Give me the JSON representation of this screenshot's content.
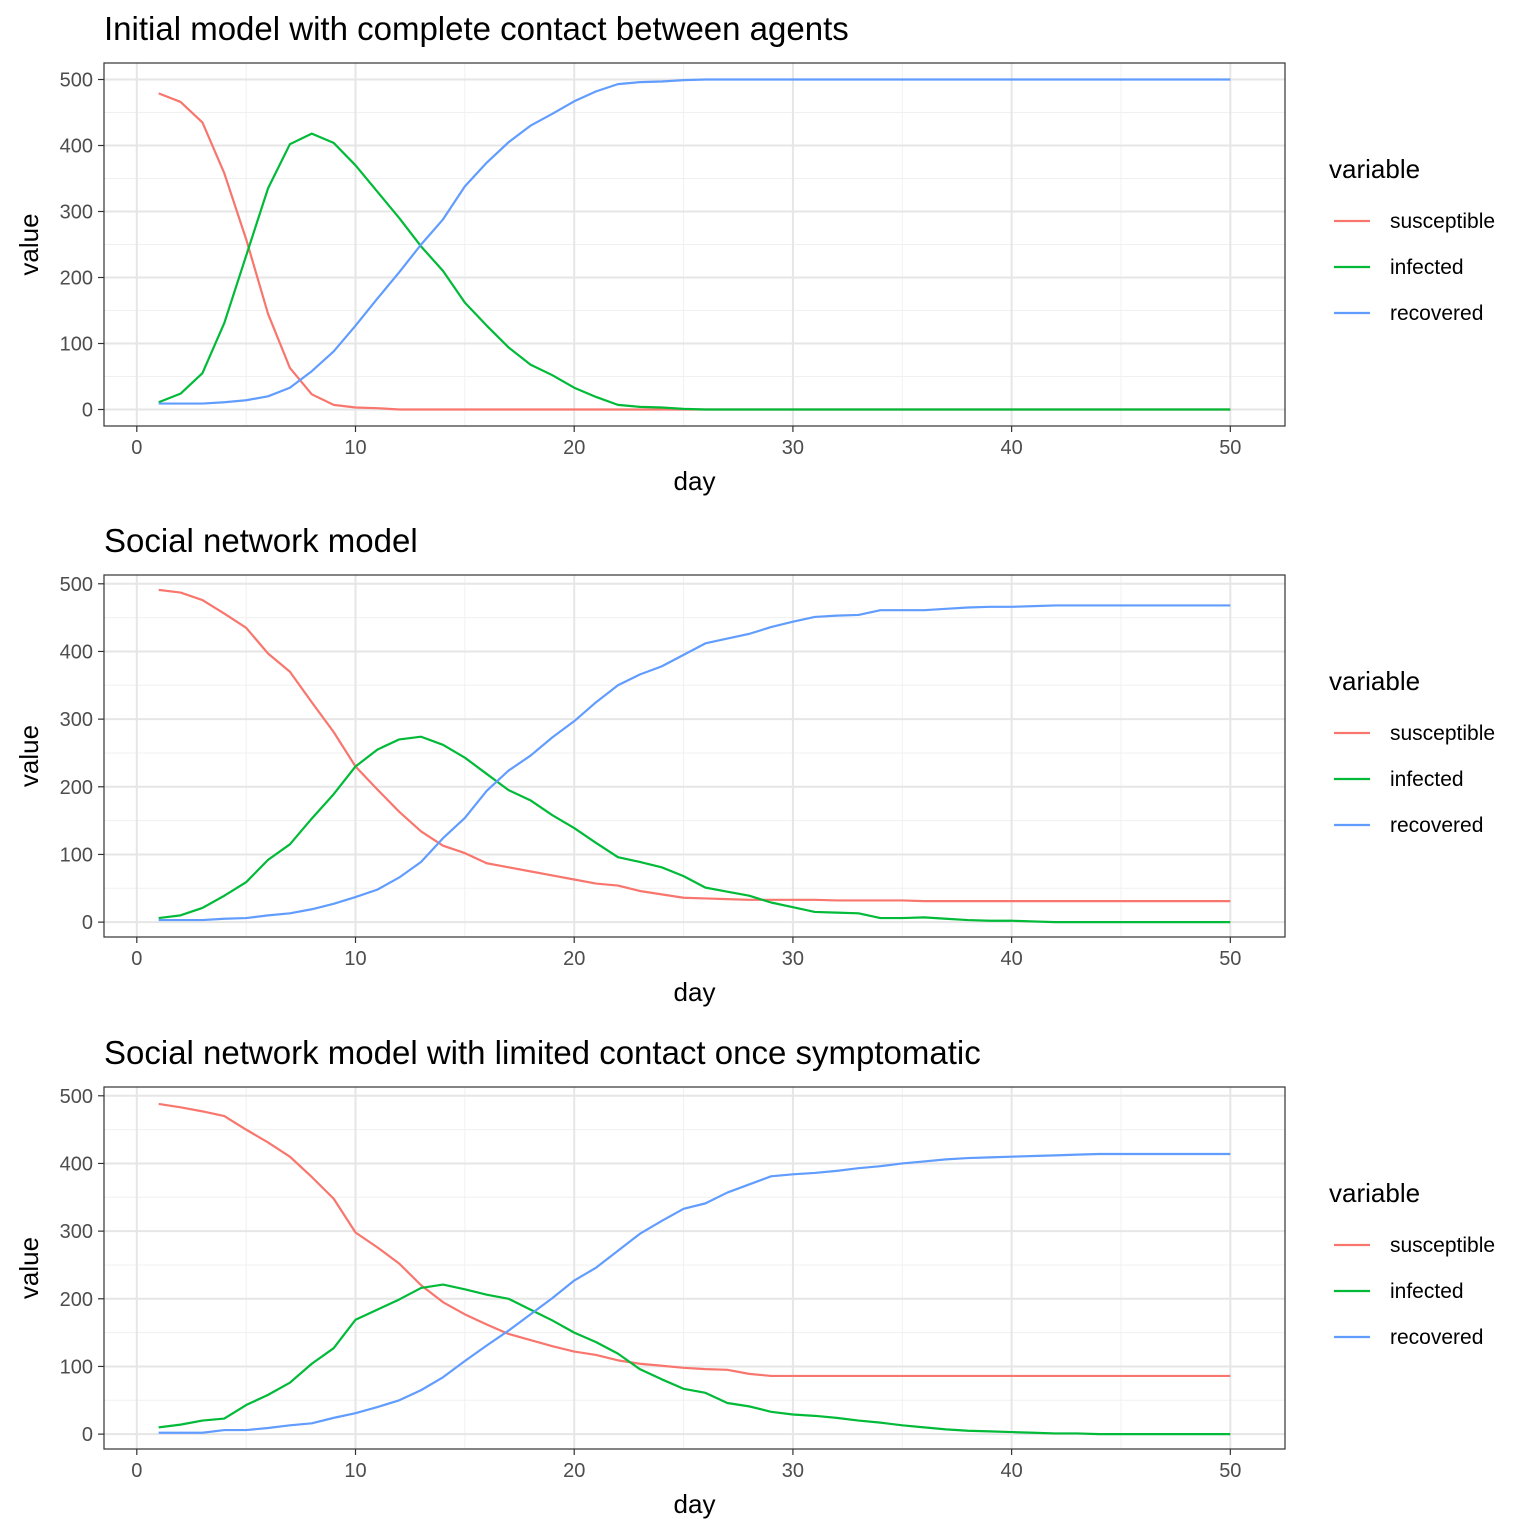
{
  "chart_data": [
    {
      "type": "line",
      "title": "Initial model with complete contact between agents",
      "xlabel": "day",
      "ylabel": "value",
      "xlim": [
        -1.5,
        52.5
      ],
      "ylim": [
        -25,
        525
      ],
      "xticks": [
        0,
        10,
        20,
        30,
        40,
        50
      ],
      "yticks": [
        0,
        100,
        200,
        300,
        400,
        500
      ],
      "grid": true,
      "legend": {
        "title": "variable",
        "position": "right"
      },
      "x": [
        1,
        2,
        3,
        4,
        5,
        6,
        7,
        8,
        9,
        10,
        11,
        12,
        13,
        14,
        15,
        16,
        17,
        18,
        19,
        20,
        21,
        22,
        23,
        24,
        25,
        26,
        27,
        28,
        29,
        30,
        31,
        32,
        33,
        34,
        35,
        36,
        37,
        38,
        39,
        40,
        41,
        42,
        43,
        44,
        45,
        46,
        47,
        48,
        49,
        50
      ],
      "series": [
        {
          "name": "susceptible",
          "color": "#F8766D",
          "values": [
            479,
            466,
            435,
            358,
            258,
            145,
            63,
            23,
            7,
            3,
            2,
            0,
            0,
            0,
            0,
            0,
            0,
            0,
            0,
            0,
            0,
            0,
            0,
            0,
            0,
            0,
            0,
            0,
            0,
            0,
            0,
            0,
            0,
            0,
            0,
            0,
            0,
            0,
            0,
            0,
            0,
            0,
            0,
            0,
            0,
            0,
            0,
            0,
            0,
            0
          ]
        },
        {
          "name": "infected",
          "color": "#00BA38",
          "values": [
            11,
            24,
            55,
            131,
            233,
            335,
            402,
            418,
            404,
            370,
            330,
            290,
            247,
            210,
            162,
            127,
            94,
            68,
            52,
            33,
            19,
            7,
            4,
            3,
            1,
            0,
            0,
            0,
            0,
            0,
            0,
            0,
            0,
            0,
            0,
            0,
            0,
            0,
            0,
            0,
            0,
            0,
            0,
            0,
            0,
            0,
            0,
            0,
            0,
            0
          ]
        },
        {
          "name": "recovered",
          "color": "#619CFF",
          "values": [
            9,
            9,
            9,
            11,
            14,
            20,
            33,
            58,
            88,
            127,
            168,
            208,
            250,
            288,
            338,
            374,
            405,
            430,
            448,
            467,
            482,
            493,
            496,
            497,
            499,
            500,
            500,
            500,
            500,
            500,
            500,
            500,
            500,
            500,
            500,
            500,
            500,
            500,
            500,
            500,
            500,
            500,
            500,
            500,
            500,
            500,
            500,
            500,
            500,
            500
          ]
        }
      ]
    },
    {
      "type": "line",
      "title": "Social network model",
      "xlabel": "day",
      "ylabel": "value",
      "xlim": [
        -1.5,
        52.5
      ],
      "ylim": [
        -22,
        513
      ],
      "xticks": [
        0,
        10,
        20,
        30,
        40,
        50
      ],
      "yticks": [
        0,
        100,
        200,
        300,
        400,
        500
      ],
      "grid": true,
      "legend": {
        "title": "variable",
        "position": "right"
      },
      "x": [
        1,
        2,
        3,
        4,
        5,
        6,
        7,
        8,
        9,
        10,
        11,
        12,
        13,
        14,
        15,
        16,
        17,
        18,
        19,
        20,
        21,
        22,
        23,
        24,
        25,
        26,
        27,
        28,
        29,
        30,
        31,
        32,
        33,
        34,
        35,
        36,
        37,
        38,
        39,
        40,
        41,
        42,
        43,
        44,
        45,
        46,
        47,
        48,
        49,
        50
      ],
      "series": [
        {
          "name": "susceptible",
          "color": "#F8766D",
          "values": [
            491,
            487,
            476,
            456,
            435,
            397,
            370,
            325,
            281,
            230,
            196,
            163,
            134,
            113,
            102,
            87,
            81,
            75,
            69,
            63,
            57,
            54,
            46,
            41,
            36,
            35,
            34,
            33,
            33,
            33,
            33,
            32,
            32,
            32,
            32,
            31,
            31,
            31,
            31,
            31,
            31,
            31,
            31,
            31,
            31,
            31,
            31,
            31,
            31,
            31
          ]
        },
        {
          "name": "infected",
          "color": "#00BA38",
          "values": [
            6,
            10,
            21,
            39,
            59,
            92,
            115,
            153,
            189,
            230,
            255,
            270,
            274,
            262,
            243,
            219,
            195,
            180,
            158,
            139,
            117,
            96,
            89,
            81,
            68,
            51,
            45,
            39,
            29,
            22,
            15,
            14,
            13,
            6,
            6,
            7,
            5,
            3,
            2,
            2,
            1,
            0,
            0,
            0,
            0,
            0,
            0,
            0,
            0,
            0
          ]
        },
        {
          "name": "recovered",
          "color": "#619CFF",
          "values": [
            3,
            3,
            3,
            5,
            6,
            10,
            13,
            19,
            27,
            37,
            48,
            66,
            89,
            124,
            154,
            194,
            224,
            246,
            273,
            297,
            325,
            350,
            366,
            378,
            395,
            412,
            419,
            426,
            436,
            444,
            451,
            453,
            454,
            461,
            461,
            461,
            463,
            465,
            466,
            466,
            467,
            468,
            468,
            468,
            468,
            468,
            468,
            468,
            468,
            468
          ]
        }
      ]
    },
    {
      "type": "line",
      "title": "Social network model with limited contact once symptomatic",
      "xlabel": "day",
      "ylabel": "value",
      "xlim": [
        -1.5,
        52.5
      ],
      "ylim": [
        -22,
        513
      ],
      "xticks": [
        0,
        10,
        20,
        30,
        40,
        50
      ],
      "yticks": [
        0,
        100,
        200,
        300,
        400,
        500
      ],
      "grid": true,
      "legend": {
        "title": "variable",
        "position": "right"
      },
      "x": [
        1,
        2,
        3,
        4,
        5,
        6,
        7,
        8,
        9,
        10,
        11,
        12,
        13,
        14,
        15,
        16,
        17,
        18,
        19,
        20,
        21,
        22,
        23,
        24,
        25,
        26,
        27,
        28,
        29,
        30,
        31,
        32,
        33,
        34,
        35,
        36,
        37,
        38,
        39,
        40,
        41,
        42,
        43,
        44,
        45,
        46,
        47,
        48,
        49,
        50
      ],
      "series": [
        {
          "name": "susceptible",
          "color": "#F8766D",
          "values": [
            488,
            483,
            477,
            470,
            450,
            431,
            410,
            380,
            348,
            298,
            276,
            252,
            220,
            195,
            177,
            162,
            148,
            139,
            130,
            122,
            117,
            109,
            104,
            101,
            98,
            96,
            95,
            89,
            86,
            86,
            86,
            86,
            86,
            86,
            86,
            86,
            86,
            86,
            86,
            86,
            86,
            86,
            86,
            86,
            86,
            86,
            86,
            86,
            86,
            86
          ]
        },
        {
          "name": "infected",
          "color": "#00BA38",
          "values": [
            10,
            14,
            20,
            23,
            43,
            58,
            76,
            104,
            127,
            169,
            184,
            199,
            216,
            221,
            214,
            206,
            200,
            184,
            168,
            150,
            136,
            119,
            96,
            81,
            67,
            61,
            46,
            41,
            33,
            29,
            27,
            24,
            20,
            17,
            13,
            10,
            7,
            5,
            4,
            3,
            2,
            1,
            1,
            0,
            0,
            0,
            0,
            0,
            0,
            0
          ]
        },
        {
          "name": "recovered",
          "color": "#619CFF",
          "values": [
            2,
            2,
            2,
            6,
            6,
            9,
            13,
            16,
            24,
            31,
            40,
            50,
            65,
            84,
            108,
            131,
            153,
            177,
            201,
            227,
            246,
            271,
            296,
            315,
            333,
            341,
            357,
            369,
            381,
            384,
            386,
            389,
            393,
            396,
            400,
            403,
            406,
            408,
            409,
            410,
            411,
            412,
            413,
            414,
            414,
            414,
            414,
            414,
            414,
            414
          ]
        }
      ]
    }
  ]
}
